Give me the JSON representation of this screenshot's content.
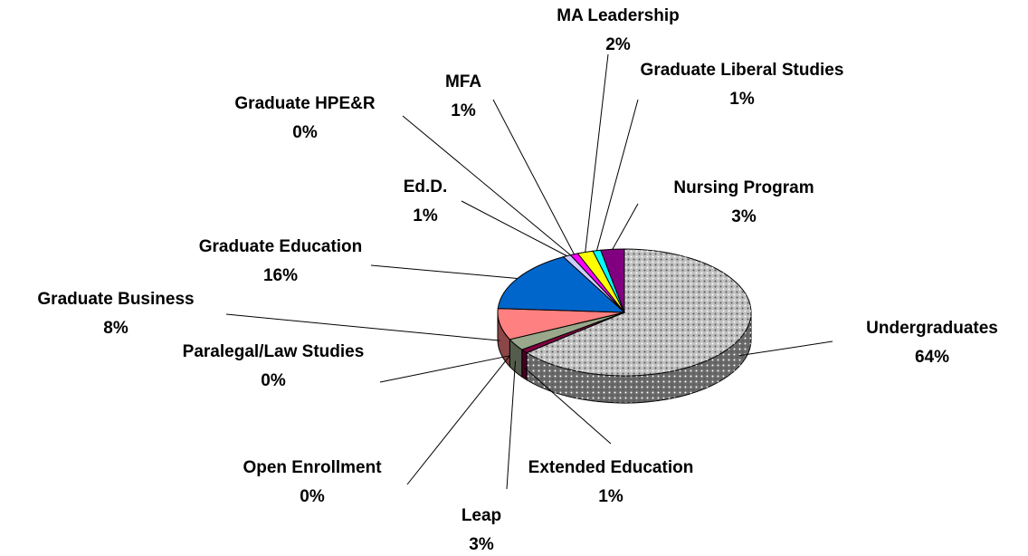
{
  "chart_data": {
    "type": "pie",
    "categories": [
      "Undergraduates",
      "Extended Education",
      "Leap",
      "Open Enrollment",
      "Paralegal/Law Studies",
      "Graduate Business",
      "Graduate Education",
      "Ed.D.",
      "Graduate HPE&R",
      "MFA",
      "MA Leadership",
      "Graduate Liberal Studies",
      "Nursing Program"
    ],
    "values": [
      64,
      1,
      3,
      0,
      0,
      8,
      16,
      1,
      0,
      1,
      2,
      1,
      3
    ],
    "value_labels": [
      "64%",
      "1%",
      "3%",
      "0%",
      "0%",
      "8%",
      "16%",
      "1%",
      "0%",
      "1%",
      "2%",
      "1%",
      "3%"
    ],
    "colors": [
      "#c0c0c0",
      "#800040",
      "#99a88a",
      "#336633",
      "#ffffcc",
      "#ff8080",
      "#0066cc",
      "#ccccff",
      "#9999cc",
      "#ff00ff",
      "#ffff00",
      "#00ffff",
      "#800080"
    ]
  }
}
